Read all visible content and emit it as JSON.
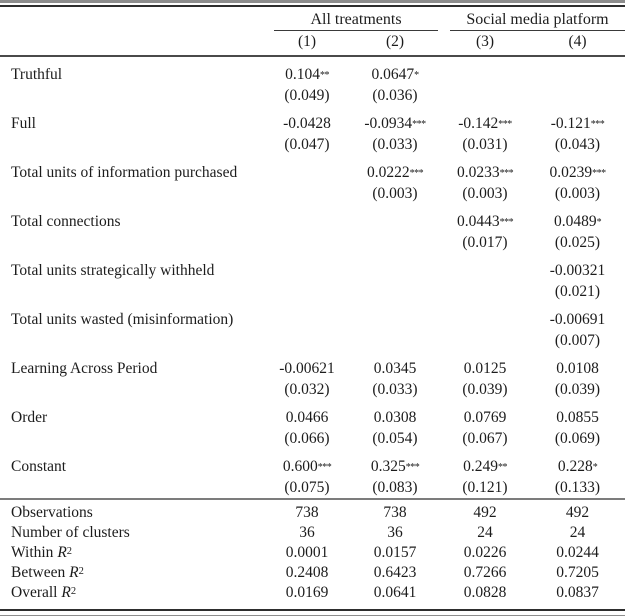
{
  "table": {
    "column_groups": [
      {
        "label": "All treatments",
        "span": 2
      },
      {
        "label": "Social media platform",
        "span": 2
      }
    ],
    "column_headers": [
      "(1)",
      "(2)",
      "(3)",
      "(4)"
    ],
    "coefficient_rows": [
      {
        "label": "Truthful",
        "cells": [
          {
            "est": "0.104",
            "stars": "**",
            "se": "(0.049)"
          },
          {
            "est": "0.0647",
            "stars": "*",
            "se": "(0.036)"
          },
          null,
          null
        ]
      },
      {
        "label": "Full",
        "cells": [
          {
            "est": "-0.0428",
            "stars": "",
            "se": "(0.047)"
          },
          {
            "est": "-0.0934",
            "stars": "***",
            "se": "(0.033)"
          },
          {
            "est": "-0.142",
            "stars": "***",
            "se": "(0.031)"
          },
          {
            "est": "-0.121",
            "stars": "***",
            "se": "(0.043)"
          }
        ]
      },
      {
        "label": "Total units of information purchased",
        "cells": [
          null,
          {
            "est": "0.0222",
            "stars": "***",
            "se": "(0.003)"
          },
          {
            "est": "0.0233",
            "stars": "***",
            "se": "(0.003)"
          },
          {
            "est": "0.0239",
            "stars": "***",
            "se": "(0.003)"
          }
        ]
      },
      {
        "label": "Total connections",
        "cells": [
          null,
          null,
          {
            "est": "0.0443",
            "stars": "***",
            "se": "(0.017)"
          },
          {
            "est": "0.0489",
            "stars": "*",
            "se": "(0.025)"
          }
        ]
      },
      {
        "label": "Total units strategically withheld",
        "cells": [
          null,
          null,
          null,
          {
            "est": "-0.00321",
            "stars": "",
            "se": "(0.021)"
          }
        ]
      },
      {
        "label": "Total units wasted (misinformation)",
        "cells": [
          null,
          null,
          null,
          {
            "est": "-0.00691",
            "stars": "",
            "se": "(0.007)"
          }
        ]
      },
      {
        "label": "Learning Across Period",
        "cells": [
          {
            "est": "-0.00621",
            "stars": "",
            "se": "(0.032)"
          },
          {
            "est": "0.0345",
            "stars": "",
            "se": "(0.033)"
          },
          {
            "est": "0.0125",
            "stars": "",
            "se": "(0.039)"
          },
          {
            "est": "0.0108",
            "stars": "",
            "se": "(0.039)"
          }
        ]
      },
      {
        "label": "Order",
        "cells": [
          {
            "est": "0.0466",
            "stars": "",
            "se": "(0.066)"
          },
          {
            "est": "0.0308",
            "stars": "",
            "se": "(0.054)"
          },
          {
            "est": "0.0769",
            "stars": "",
            "se": "(0.067)"
          },
          {
            "est": "0.0855",
            "stars": "",
            "se": "(0.069)"
          }
        ]
      },
      {
        "label": "Constant",
        "cells": [
          {
            "est": "0.600",
            "stars": "***",
            "se": "(0.075)"
          },
          {
            "est": "0.325",
            "stars": "***",
            "se": "(0.083)"
          },
          {
            "est": "0.249",
            "stars": "**",
            "se": "(0.121)"
          },
          {
            "est": "0.228",
            "stars": "*",
            "se": "(0.133)"
          }
        ]
      }
    ],
    "stats_rows": [
      {
        "label": "Observations",
        "values": [
          "738",
          "738",
          "492",
          "492"
        ]
      },
      {
        "label": "Number of clusters",
        "values": [
          "36",
          "36",
          "24",
          "24"
        ]
      },
      {
        "label": "Within",
        "math": {
          "symbol": "R",
          "sup": "2"
        },
        "values": [
          "0.0001",
          "0.0157",
          "0.0226",
          "0.0244"
        ]
      },
      {
        "label": "Between",
        "math": {
          "symbol": "R",
          "sup": "2"
        },
        "values": [
          "0.2408",
          "0.6423",
          "0.7266",
          "0.7205"
        ]
      },
      {
        "label": "Overall",
        "math": {
          "symbol": "R",
          "sup": "2"
        },
        "values": [
          "0.0169",
          "0.0641",
          "0.0828",
          "0.0837"
        ]
      }
    ]
  }
}
